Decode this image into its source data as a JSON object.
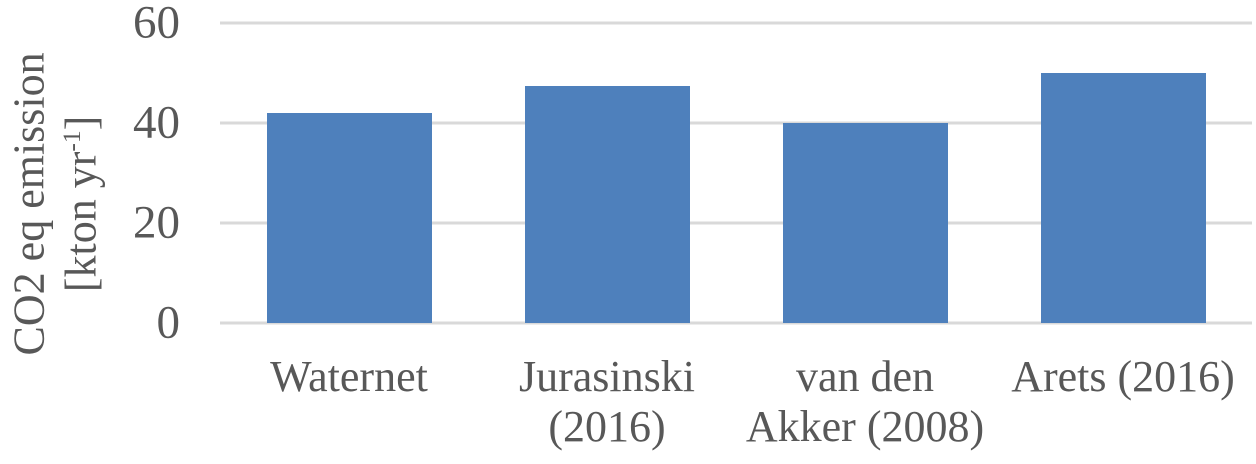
{
  "chart_data": {
    "type": "bar",
    "title": "",
    "xlabel": "",
    "ylabel": "CO2 eq emission [kton yr-1]",
    "ylabel_lines": {
      "line1": "CO2 eq emission",
      "unit_prefix": "[kton yr",
      "unit_sup": "-1",
      "unit_suffix": "]"
    },
    "categories": [
      "Waternet",
      "Jurasinski (2016)",
      "van den Akker (2008)",
      "Arets (2016)"
    ],
    "categories_lines": [
      [
        "Waternet"
      ],
      [
        "Jurasinski",
        "(2016)"
      ],
      [
        "van den",
        "Akker (2008)"
      ],
      [
        "Arets (2016)"
      ]
    ],
    "values": [
      42,
      47.5,
      40,
      50
    ],
    "yticks": [
      0,
      20,
      40,
      60
    ],
    "ylim": [
      0,
      60
    ],
    "grid": true,
    "legend": false,
    "colors": {
      "bar": "#4E80BC",
      "gridline": "#D9D9D9",
      "text": "#585858"
    }
  }
}
